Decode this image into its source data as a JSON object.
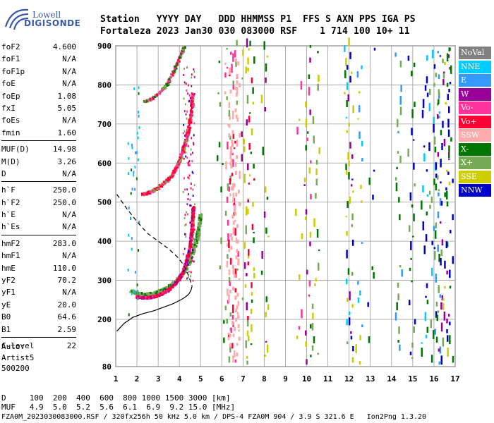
{
  "logo": {
    "line1": "Lowell",
    "line2": "DIGISONDE"
  },
  "header": {
    "keys": "Station   YYYY DAY   DDD HHMMSS P1  FFS S AXN PPS IGA PS",
    "values": "Fortaleza 2023 Jan30 030 083000 RSF    1 714 100 10+ 11"
  },
  "parameters": [
    [
      {
        "k": "foF2",
        "v": "4.600"
      },
      {
        "k": "foF1",
        "v": "N/A"
      },
      {
        "k": "foF1p",
        "v": "N/A"
      },
      {
        "k": "foE",
        "v": "N/A"
      },
      {
        "k": "foEp",
        "v": "1.08"
      },
      {
        "k": "fxI",
        "v": "5.05"
      },
      {
        "k": "foEs",
        "v": "N/A"
      },
      {
        "k": "fmin",
        "v": "1.60"
      }
    ],
    [
      {
        "k": "MUF(D)",
        "v": "14.98"
      },
      {
        "k": "M(D)",
        "v": "3.26"
      },
      {
        "k": "D",
        "v": "N/A"
      }
    ],
    [
      {
        "k": "h`F",
        "v": "250.0"
      },
      {
        "k": "h`F2",
        "v": "250.0"
      },
      {
        "k": "h`E",
        "v": "N/A"
      },
      {
        "k": "h`Es",
        "v": "N/A"
      }
    ],
    [
      {
        "k": "hmF2",
        "v": "283.0"
      },
      {
        "k": "hmF1",
        "v": "N/A"
      },
      {
        "k": "hmE",
        "v": "110.0"
      },
      {
        "k": "yF2",
        "v": "70.2"
      },
      {
        "k": "yF1",
        "v": "N/A"
      },
      {
        "k": "yE",
        "v": "20.0"
      },
      {
        "k": "B0",
        "v": "64.6"
      },
      {
        "k": "B1",
        "v": "2.59"
      }
    ],
    [
      {
        "k": "C-level",
        "v": "22"
      }
    ]
  ],
  "autoscaling": {
    "line1": "Auto:",
    "line2": "Artist5",
    "line3": "500200"
  },
  "legend": [
    {
      "label": "NoVal",
      "color": "#808080"
    },
    {
      "label": "NNE",
      "color": "#00ccff"
    },
    {
      "label": "E",
      "color": "#3399ff"
    },
    {
      "label": "W",
      "color": "#990099"
    },
    {
      "label": "Vo-",
      "color": "#ff3399"
    },
    {
      "label": "Vo+",
      "color": "#ff0033"
    },
    {
      "label": "SSW",
      "color": "#ffaaaa"
    },
    {
      "label": "X-",
      "color": "#007700"
    },
    {
      "label": "X+",
      "color": "#77aa55"
    },
    {
      "label": "SSE",
      "color": "#cccc00"
    },
    {
      "label": "NNW",
      "color": "#0000cc"
    }
  ],
  "bottom": {
    "line1": "D     100  200  400  600  800 1000 1500 3000 [km]",
    "line2": "MUF   4.9  5.0  5.2  5.6  6.1  6.9  9.2 15.0 [MHz]",
    "line3": "FZA0M_2023030083000.RSF / 320fx256h 50 kHz 5.0 km / DPS-4 FZA0M 904 / 3.9 S 321.6 E   Ion2Png 1.3.20"
  },
  "chart_data": {
    "type": "scatter",
    "title": "",
    "xlabel": "",
    "ylabel": "",
    "xlim": [
      1,
      17
    ],
    "ylim": [
      80,
      900
    ],
    "xticks": [
      1,
      2,
      3,
      4,
      5,
      6,
      7,
      8,
      9,
      10,
      11,
      12,
      13,
      14,
      15,
      16,
      17
    ],
    "yticks": [
      80,
      200,
      300,
      400,
      500,
      600,
      700,
      800,
      900
    ],
    "grid": true,
    "ordinary_trace": {
      "hop1_x": [
        1.95,
        2.2,
        2.5,
        2.8,
        3.1,
        3.4,
        3.7,
        3.95,
        4.15,
        4.3,
        4.42,
        4.5,
        4.56,
        4.6,
        4.62
      ],
      "hop1_y": [
        260,
        258,
        258,
        261,
        267,
        276,
        290,
        305,
        325,
        350,
        375,
        400,
        430,
        460,
        490
      ],
      "hop2_x": [
        2.2,
        2.6,
        3.0,
        3.4,
        3.7,
        3.95,
        4.15,
        4.3,
        4.45,
        4.55,
        4.6
      ],
      "hop2_y": [
        522,
        528,
        540,
        558,
        578,
        605,
        635,
        665,
        700,
        740,
        780
      ],
      "hop3_x": [
        2.3,
        2.7,
        3.1,
        3.4,
        3.65,
        3.85,
        4.05,
        4.2
      ],
      "hop3_y": [
        760,
        768,
        785,
        805,
        830,
        855,
        880,
        900
      ]
    },
    "extraordinary_trace": {
      "hop1_x": [
        1.7,
        2.0,
        2.4,
        2.8,
        3.2,
        3.6,
        3.9,
        4.2,
        4.45,
        4.65,
        4.8,
        4.9,
        4.95
      ],
      "hop1_y": [
        275,
        268,
        266,
        270,
        278,
        290,
        305,
        325,
        350,
        380,
        410,
        440,
        470
      ]
    },
    "profile_solid": {
      "x": [
        1.05,
        1.4,
        1.8,
        2.3,
        2.8,
        3.3,
        3.7,
        4.0,
        4.25,
        4.45,
        4.55,
        4.6
      ],
      "y": [
        170,
        190,
        205,
        215,
        222,
        232,
        240,
        248,
        256,
        265,
        275,
        285
      ]
    },
    "profile_dashed": {
      "x": [
        1.05,
        1.5,
        2.0,
        2.5,
        3.0,
        3.5,
        3.9,
        4.2,
        4.45,
        4.6
      ],
      "y": [
        520,
        485,
        450,
        420,
        400,
        380,
        360,
        340,
        310,
        285
      ]
    }
  }
}
